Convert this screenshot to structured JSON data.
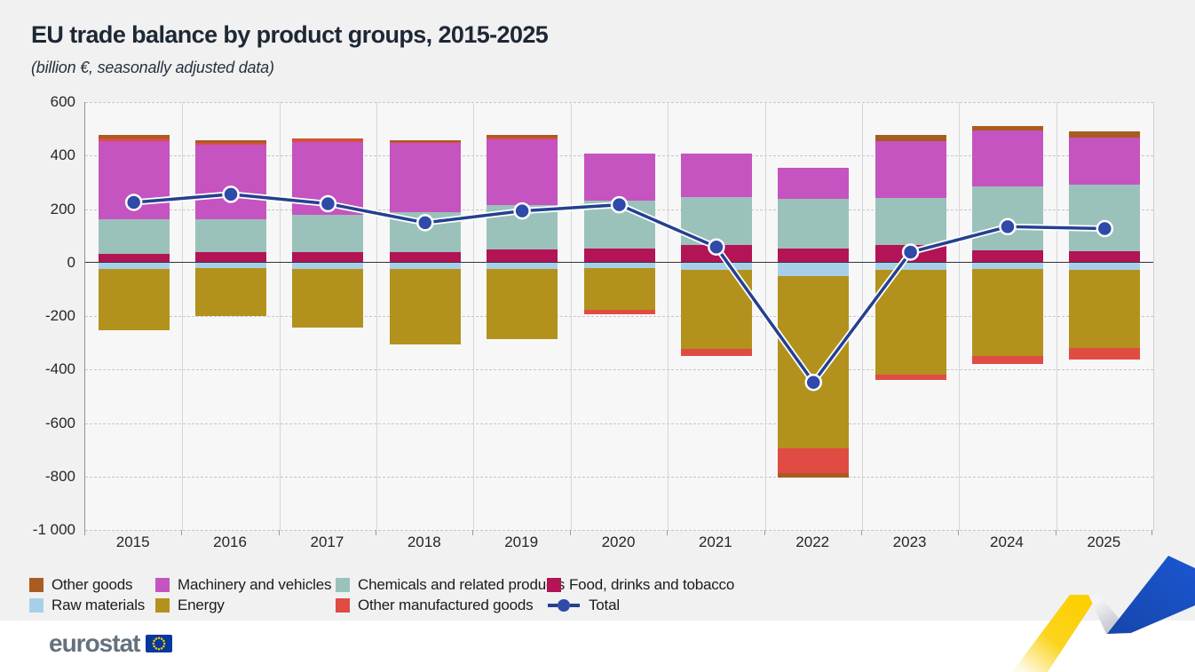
{
  "header": {
    "title": "EU trade balance by product groups, 2015-2025",
    "subtitle": "(billion €, seasonally adjusted data)"
  },
  "footer": {
    "logo_text": "eurostat"
  },
  "colors": {
    "panel_bg": "#f1f1f2",
    "plot_bg": "#f7f7f8",
    "zero_line": "#32323f",
    "ribbon_yellow": "#fccf00",
    "ribbon_blue": "#1b53c6",
    "eu_flag_blue": "#06389d",
    "eu_flag_stars": "#ffcc00"
  },
  "chart_data": {
    "type": "bar",
    "subtype": "stacked-bars-with-total-line",
    "title": "EU trade balance by product groups, 2015-2025",
    "subtitle": "(billion €, seasonally adjusted data)",
    "unit": "billion €",
    "xlabel": "",
    "ylabel": "",
    "ylim": [
      -1000,
      600
    ],
    "grid": "horizontal dashed gridlines, vertical solid year separators",
    "legend_position": "bottom",
    "categories": [
      "2015",
      "2016",
      "2017",
      "2018",
      "2019",
      "2020",
      "2021",
      "2022",
      "2023",
      "2024",
      "2025"
    ],
    "yticks": [
      {
        "value": 600,
        "label": "600"
      },
      {
        "value": 400,
        "label": "400"
      },
      {
        "value": 200,
        "label": "200"
      },
      {
        "value": 0,
        "label": "0"
      },
      {
        "value": -200,
        "label": "-200"
      },
      {
        "value": -400,
        "label": "-400"
      },
      {
        "value": -600,
        "label": "-600"
      },
      {
        "value": -800,
        "label": "-800"
      },
      {
        "value": -1000,
        "label": "-1 000"
      }
    ],
    "series": [
      {
        "id": "food",
        "name": "Food, drinks and tobacco",
        "color": "#b21456",
        "values": [
          33,
          38,
          40,
          38,
          48,
          53,
          65,
          52,
          65,
          47,
          42
        ]
      },
      {
        "id": "chemicals",
        "name": "Chemicals and related products",
        "color": "#9ac2ba",
        "values": [
          130,
          125,
          137,
          152,
          167,
          179,
          180,
          185,
          178,
          239,
          250
        ]
      },
      {
        "id": "machinery",
        "name": "Machinery and vehicles",
        "color": "#c553c0",
        "values": [
          290,
          277,
          275,
          258,
          245,
          176,
          163,
          118,
          212,
          207,
          175
        ]
      },
      {
        "id": "other_manufactured",
        "name": "Other manufactured goods",
        "color": "#e04c43",
        "values": [
          12,
          8,
          7,
          4,
          8,
          -15,
          -28,
          -94,
          -19,
          -28,
          -41
        ]
      },
      {
        "id": "other_goods",
        "name": "Other goods",
        "color": "#a95c21",
        "values": [
          13,
          8,
          4,
          4,
          10,
          0,
          0,
          -14,
          23,
          19,
          22
        ]
      },
      {
        "id": "raw_materials",
        "name": "Raw materials",
        "color": "#a8cfe8",
        "values": [
          -25,
          -22,
          -23,
          -25,
          -25,
          -20,
          -29,
          -50,
          -27,
          -25,
          -27
        ]
      },
      {
        "id": "energy",
        "name": "Energy",
        "color": "#b2921c",
        "values": [
          -228,
          -179,
          -220,
          -282,
          -260,
          -157,
          -293,
          -645,
          -393,
          -325,
          -294
        ]
      }
    ],
    "stack_order_positive": [
      "food",
      "chemicals",
      "machinery",
      "other_manufactured",
      "other_goods"
    ],
    "stack_order_negative": [
      "raw_materials",
      "energy",
      "other_manufactured",
      "other_goods"
    ],
    "line_series": {
      "id": "total",
      "name": "Total",
      "color": "#24418f",
      "marker_color": "#2f4aa8",
      "values": [
        225,
        255,
        220,
        149,
        193,
        216,
        58,
        -448,
        39,
        134,
        127
      ]
    },
    "legend": {
      "rows": [
        [
          {
            "glyph": "box",
            "series": "other_goods",
            "label": "Other goods"
          },
          {
            "glyph": "box",
            "series": "machinery",
            "label": "Machinery and vehicles"
          },
          {
            "glyph": "box",
            "series": "chemicals",
            "label": "Chemicals and related products"
          },
          {
            "glyph": "box",
            "series": "food",
            "label": "Food, drinks and tobacco"
          }
        ],
        [
          {
            "glyph": "box",
            "series": "raw_materials",
            "label": "Raw materials"
          },
          {
            "glyph": "box",
            "series": "energy",
            "label": "Energy"
          },
          {
            "glyph": "box",
            "series": "other_manufactured",
            "label": "Other manufactured goods"
          },
          {
            "glyph": "line",
            "series": "total",
            "label": "Total"
          }
        ]
      ]
    }
  }
}
